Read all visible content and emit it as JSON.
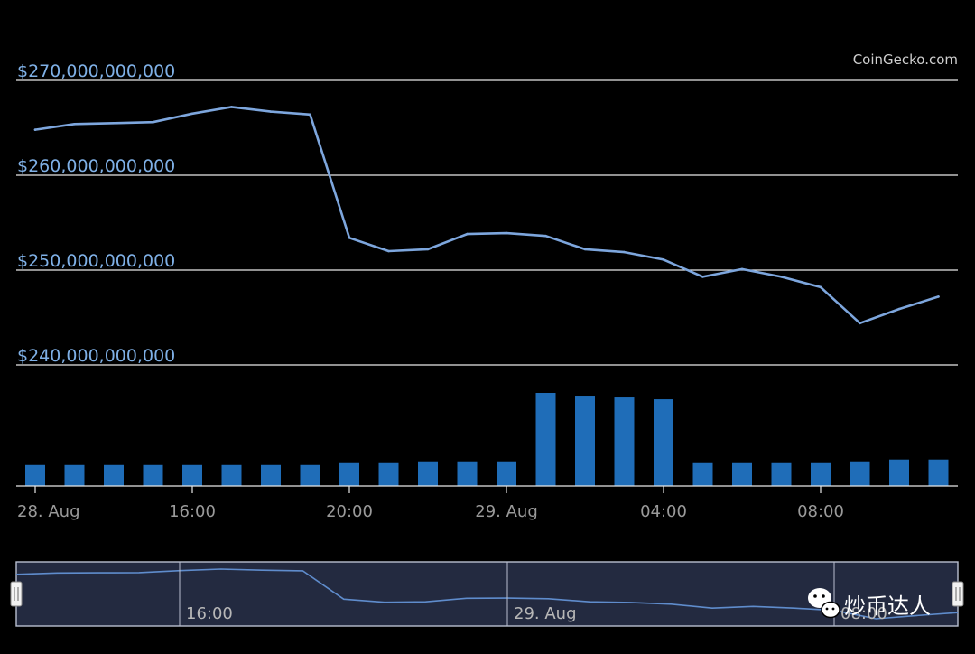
{
  "credit": "CoinGecko.com",
  "watermark": {
    "text": "炒币达人",
    "icon": "wechat-icon"
  },
  "colors": {
    "background": "#000000",
    "line": "#7da6dd",
    "bar": "#1f6db8",
    "gridline": "#e8e8e8",
    "y_label": "#7fb0e6",
    "x_label": "#9a9a9a",
    "navigator_bg": "#232a40",
    "navigator_border": "#b8bfd0",
    "navigator_line": "#5f8ccc"
  },
  "chart_data": {
    "type": "line",
    "title": "",
    "xlabel": "",
    "ylabel": "",
    "ylim": [
      240000000000,
      270000000000
    ],
    "y_ticks": [
      {
        "value": 270000000000,
        "label": "$270,000,000,000"
      },
      {
        "value": 260000000000,
        "label": "$260,000,000,000"
      },
      {
        "value": 250000000000,
        "label": "$250,000,000,000"
      },
      {
        "value": 240000000000,
        "label": "$240,000,000,000"
      }
    ],
    "x_ticks": [
      "28. Aug",
      "16:00",
      "20:00",
      "29. Aug",
      "04:00",
      "08:00"
    ],
    "grid": true,
    "legend": "none",
    "series": [
      {
        "values": [
          264.8,
          265.4,
          265.5,
          265.6,
          266.5,
          267.2,
          266.7,
          266.4,
          253.4,
          252.0,
          252.2,
          253.8,
          253.9,
          253.6,
          252.2,
          251.9,
          251.1,
          249.3,
          250.1,
          249.3,
          248.2,
          244.4,
          245.9,
          247.2
        ],
        "unit": "billion USD"
      }
    ],
    "volume": {
      "type": "bar",
      "values": [
        2.3,
        2.3,
        2.3,
        2.3,
        2.3,
        2.3,
        2.3,
        2.3,
        2.5,
        2.5,
        2.7,
        2.7,
        2.7,
        10.2,
        9.9,
        9.7,
        9.5,
        2.5,
        2.5,
        2.5,
        2.5,
        2.7,
        2.9,
        2.9
      ],
      "scale": "relative"
    },
    "navigator": {
      "x_ticks": [
        "16:00",
        "29. Aug",
        "08:00"
      ],
      "handle_icon": "drag-handle-icon"
    }
  }
}
